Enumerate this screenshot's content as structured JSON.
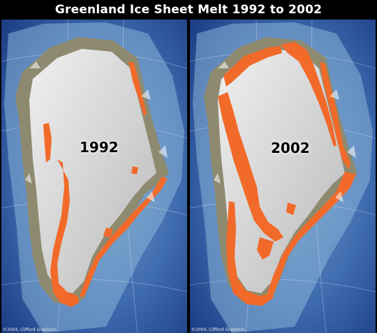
{
  "title": "Greenland Ice Sheet Melt 1992 to 2002",
  "colors": {
    "background": "#000000",
    "ocean_deep": "#1d3f86",
    "ocean_shelf": "#7aa7cf",
    "ice": "#d9d9d9",
    "melt": "#f26a2a",
    "land": "#8b8a6e"
  },
  "panels": [
    {
      "year_label": "1992",
      "copyright": "©2004, Clifford Grabhorn",
      "melt_extent": "narrow coastal margins"
    },
    {
      "year_label": "2002",
      "copyright": "©2004, Clifford Grabhorn",
      "melt_extent": "widespread inland margins"
    }
  ]
}
